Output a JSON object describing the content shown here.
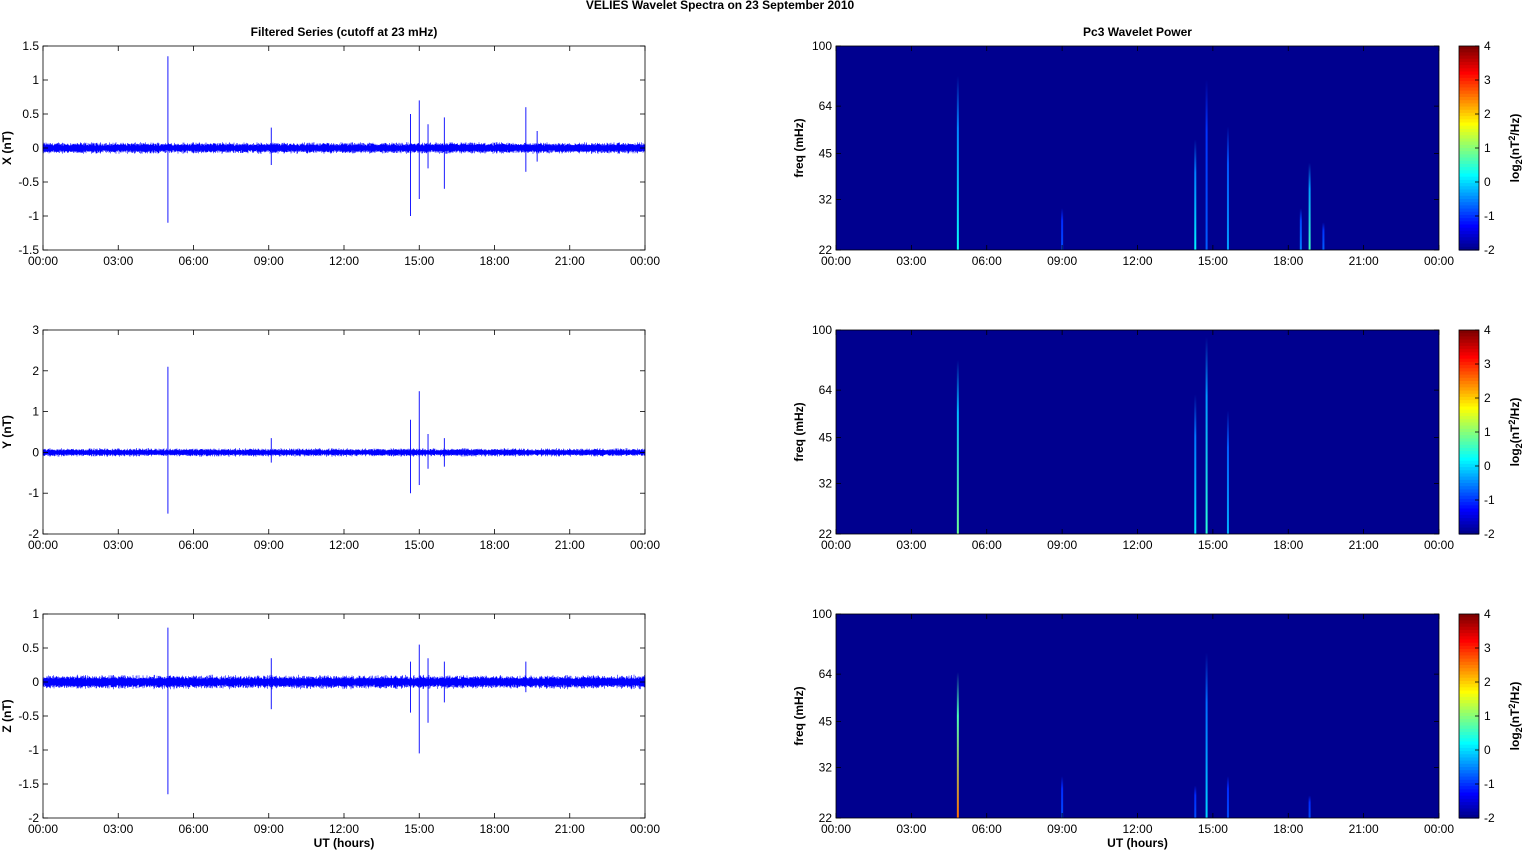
{
  "figure_title": "VELIES Wavelet Spectra on 23 September 2010",
  "colors": {
    "series": "#0000ff",
    "spectrum_background": "#00008f"
  },
  "chart_data": [
    {
      "type": "line",
      "title": "Filtered Series (cutoff at 23 mHz)",
      "ylabel": "X (nT)",
      "xlabel": "",
      "ylim": [
        -1.5,
        1.5
      ],
      "yticks": [
        "1.5",
        "1",
        "0.5",
        "0",
        "-0.5",
        "-1",
        "-1.5"
      ],
      "ytick_values": [
        1.5,
        1,
        0.5,
        0,
        -0.5,
        -1,
        -1.5
      ],
      "xlim": [
        0,
        24
      ],
      "xticks": [
        "00:00",
        "03:00",
        "06:00",
        "09:00",
        "12:00",
        "15:00",
        "18:00",
        "21:00",
        "00:00"
      ],
      "noise_amplitude": 0.09,
      "spikes": [
        {
          "t": 4.98,
          "max": 1.35,
          "min": -1.1
        },
        {
          "t": 9.1,
          "max": 0.3,
          "min": -0.25
        },
        {
          "t": 14.65,
          "max": 0.5,
          "min": -1.0
        },
        {
          "t": 15.0,
          "max": 0.7,
          "min": -0.75
        },
        {
          "t": 15.35,
          "max": 0.35,
          "min": -0.3
        },
        {
          "t": 16.0,
          "max": 0.45,
          "min": -0.6
        },
        {
          "t": 19.25,
          "max": 0.6,
          "min": -0.35
        },
        {
          "t": 19.7,
          "max": 0.25,
          "min": -0.2
        }
      ]
    },
    {
      "type": "line",
      "title": "",
      "ylabel": "Y (nT)",
      "xlabel": "",
      "ylim": [
        -2,
        3
      ],
      "yticks": [
        "3",
        "2",
        "1",
        "0",
        "-1",
        "-2"
      ],
      "ytick_values": [
        3,
        2,
        1,
        0,
        -1,
        -2
      ],
      "xlim": [
        0,
        24
      ],
      "xticks": [
        "00:00",
        "03:00",
        "06:00",
        "09:00",
        "12:00",
        "15:00",
        "18:00",
        "21:00",
        "00:00"
      ],
      "noise_amplitude": 0.11,
      "spikes": [
        {
          "t": 4.98,
          "max": 2.1,
          "min": -1.5
        },
        {
          "t": 9.1,
          "max": 0.35,
          "min": -0.25
        },
        {
          "t": 14.65,
          "max": 0.8,
          "min": -1.0
        },
        {
          "t": 15.0,
          "max": 1.5,
          "min": -0.8
        },
        {
          "t": 15.35,
          "max": 0.45,
          "min": -0.4
        },
        {
          "t": 16.0,
          "max": 0.35,
          "min": -0.35
        }
      ]
    },
    {
      "type": "line",
      "title": "",
      "ylabel": "Z (nT)",
      "xlabel": "UT (hours)",
      "ylim": [
        -2,
        1
      ],
      "yticks": [
        "1",
        "0.5",
        "0",
        "-0.5",
        "-1",
        "-1.5",
        "-2"
      ],
      "ytick_values": [
        1,
        0.5,
        0,
        -0.5,
        -1,
        -1.5,
        -2
      ],
      "xlim": [
        0,
        24
      ],
      "xticks": [
        "00:00",
        "03:00",
        "06:00",
        "09:00",
        "12:00",
        "15:00",
        "18:00",
        "21:00",
        "00:00"
      ],
      "noise_amplitude": 0.11,
      "spikes": [
        {
          "t": 4.98,
          "max": 0.8,
          "min": -1.65
        },
        {
          "t": 9.1,
          "max": 0.35,
          "min": -0.4
        },
        {
          "t": 14.65,
          "max": 0.3,
          "min": -0.45
        },
        {
          "t": 15.0,
          "max": 0.55,
          "min": -1.05
        },
        {
          "t": 15.35,
          "max": 0.35,
          "min": -0.6
        },
        {
          "t": 16.0,
          "max": 0.3,
          "min": -0.3
        },
        {
          "t": 19.25,
          "max": 0.3,
          "min": -0.15
        }
      ]
    },
    {
      "type": "heatmap",
      "title": "Pc3 Wavelet Power",
      "ylabel": "freq (mHz)",
      "xlabel": "",
      "scale": "log",
      "ylim": [
        22,
        100
      ],
      "yticks": [
        "100",
        "64",
        "45",
        "32",
        "22"
      ],
      "ytick_values": [
        100,
        64,
        45,
        32,
        22
      ],
      "xlim": [
        0,
        24
      ],
      "xticks": [
        "00:00",
        "03:00",
        "06:00",
        "09:00",
        "12:00",
        "15:00",
        "18:00",
        "21:00",
        "00:00"
      ],
      "colorbar": {
        "label_prefix": "log",
        "label_sub": "2",
        "label_mid": "(nT",
        "label_sup": "2",
        "label_suffix": "/Hz)",
        "min": -2,
        "max": 4,
        "ticks": [
          "4",
          "3",
          "2",
          "1",
          "0",
          "-1",
          "-2"
        ]
      },
      "streaks": [
        {
          "t": 4.85,
          "f_top": 80,
          "value": 0.3
        },
        {
          "t": 9.0,
          "f_top": 30,
          "value": -0.8
        },
        {
          "t": 14.3,
          "f_top": 50,
          "value": 0.2
        },
        {
          "t": 14.75,
          "f_top": 78,
          "value": -0.7
        },
        {
          "t": 15.6,
          "f_top": 55,
          "value": -0.3
        },
        {
          "t": 18.5,
          "f_top": 30,
          "value": -0.5
        },
        {
          "t": 18.85,
          "f_top": 42,
          "value": 0.6
        },
        {
          "t": 19.4,
          "f_top": 27,
          "value": -0.7
        }
      ]
    },
    {
      "type": "heatmap",
      "title": "",
      "ylabel": "freq (mHz)",
      "xlabel": "",
      "scale": "log",
      "ylim": [
        22,
        100
      ],
      "yticks": [
        "100",
        "64",
        "45",
        "32",
        "22"
      ],
      "ytick_values": [
        100,
        64,
        45,
        32,
        22
      ],
      "xlim": [
        0,
        24
      ],
      "xticks": [
        "00:00",
        "03:00",
        "06:00",
        "09:00",
        "12:00",
        "15:00",
        "18:00",
        "21:00",
        "00:00"
      ],
      "colorbar": {
        "label_prefix": "log",
        "label_sub": "2",
        "label_mid": "(nT",
        "label_sup": "2",
        "label_suffix": "/Hz)",
        "min": -2,
        "max": 4,
        "ticks": [
          "4",
          "3",
          "2",
          "1",
          "0",
          "-1",
          "-2"
        ]
      },
      "streaks": [
        {
          "t": 4.85,
          "f_top": 80,
          "value": 0.9
        },
        {
          "t": 14.3,
          "f_top": 62,
          "value": 0.1
        },
        {
          "t": 14.75,
          "f_top": 95,
          "value": 0.5
        },
        {
          "t": 15.6,
          "f_top": 55,
          "value": -0.2
        }
      ]
    },
    {
      "type": "heatmap",
      "title": "",
      "ylabel": "freq (mHz)",
      "xlabel": "UT (hours)",
      "scale": "log",
      "ylim": [
        22,
        100
      ],
      "yticks": [
        "100",
        "64",
        "45",
        "32",
        "22"
      ],
      "ytick_values": [
        100,
        64,
        45,
        32,
        22
      ],
      "xlim": [
        0,
        24
      ],
      "xticks": [
        "00:00",
        "03:00",
        "06:00",
        "09:00",
        "12:00",
        "15:00",
        "18:00",
        "21:00",
        "00:00"
      ],
      "colorbar": {
        "label_prefix": "log",
        "label_sub": "2",
        "label_mid": "(nT",
        "label_sup": "2",
        "label_suffix": "/Hz)",
        "min": -2,
        "max": 4,
        "ticks": [
          "4",
          "3",
          "2",
          "1",
          "0",
          "-1",
          "-2"
        ]
      },
      "streaks": [
        {
          "t": 4.85,
          "f_top": 65,
          "value": 2.6
        },
        {
          "t": 9.0,
          "f_top": 30,
          "value": -0.8
        },
        {
          "t": 14.3,
          "f_top": 28,
          "value": -0.8
        },
        {
          "t": 14.75,
          "f_top": 75,
          "value": 0.0
        },
        {
          "t": 15.6,
          "f_top": 30,
          "value": -0.8
        },
        {
          "t": 18.85,
          "f_top": 26,
          "value": -0.8
        }
      ]
    }
  ]
}
